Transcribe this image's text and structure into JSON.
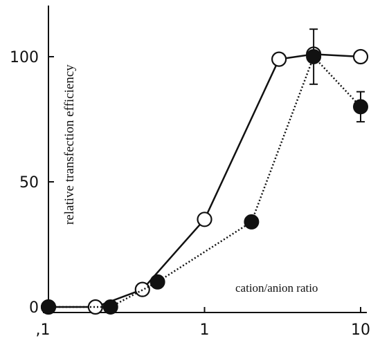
{
  "chart_data": {
    "type": "line",
    "title": "",
    "xlabel": "cation/anion ratio",
    "ylabel": "relative transfection efficiency",
    "x_scale": "log",
    "xlim": [
      0.1,
      10
    ],
    "ylim": [
      0,
      115
    ],
    "x_ticks": [
      0.1,
      1,
      10
    ],
    "x_tick_labels": [
      ",1",
      "1",
      "10"
    ],
    "y_ticks": [
      0,
      50,
      100
    ],
    "y_tick_labels": [
      "0",
      "50",
      "100"
    ],
    "grid": false,
    "legend": null,
    "series": [
      {
        "marker": "open-circle",
        "line_style": "solid",
        "x": [
          0.1,
          0.2,
          0.4,
          1,
          3,
          5,
          10
        ],
        "y": [
          0,
          0,
          7,
          35,
          99,
          101,
          100
        ]
      },
      {
        "marker": "filled-circle",
        "line_style": "dotted",
        "x": [
          0.1,
          0.25,
          0.5,
          2,
          5,
          10
        ],
        "y": [
          0,
          0,
          10,
          34,
          100,
          80
        ],
        "error": [
          null,
          null,
          null,
          null,
          11,
          6
        ]
      }
    ]
  }
}
